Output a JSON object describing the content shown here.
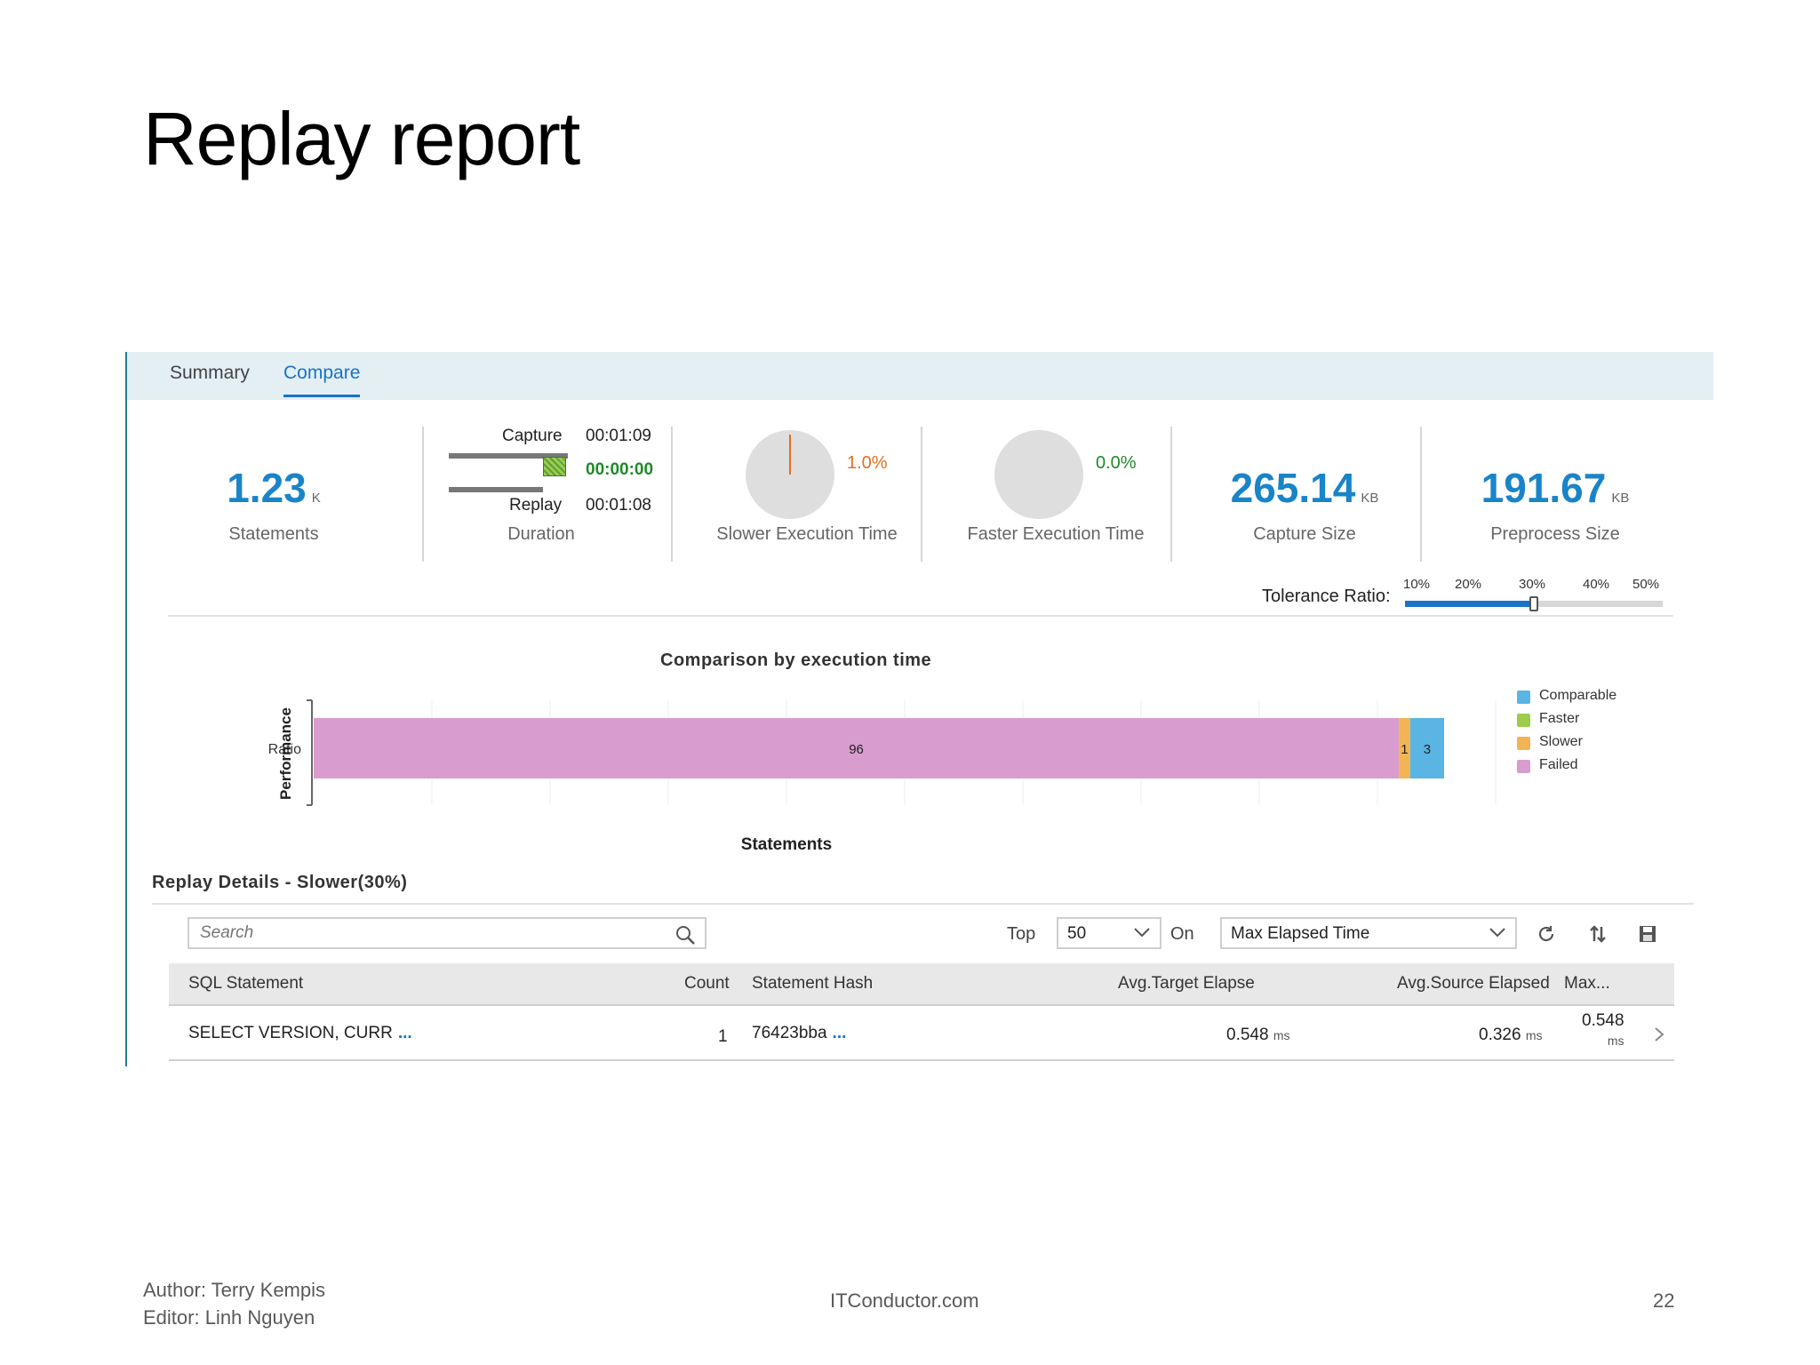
{
  "slide": {
    "title": "Replay report",
    "footer_author": "Author: Terry Kempis",
    "footer_editor": "Editor: Linh Nguyen",
    "footer_site": "ITConductor.com",
    "page_number": "22"
  },
  "tabs": [
    {
      "label": "Summary",
      "active": false
    },
    {
      "label": "Compare",
      "active": true
    }
  ],
  "kpis": {
    "statements": {
      "value": "1.23",
      "unit": "K",
      "label": "Statements"
    },
    "duration": {
      "capture_label": "Capture",
      "capture_time": "00:01:09",
      "diff_time": "00:00:00",
      "replay_label": "Replay",
      "replay_time": "00:01:08",
      "label": "Duration"
    },
    "slower": {
      "percent": "1.0%",
      "label": "Slower Execution Time"
    },
    "faster": {
      "percent": "0.0%",
      "label": "Faster Execution Time"
    },
    "capture_size": {
      "value": "265.14",
      "unit": "KB",
      "label": "Capture Size"
    },
    "preprocess_size": {
      "value": "191.67",
      "unit": "KB",
      "label": "Preprocess Size"
    }
  },
  "tolerance": {
    "label": "Tolerance Ratio:",
    "ticks": [
      "10%",
      "20%",
      "30%",
      "40%",
      "50%"
    ],
    "value_percent": 30
  },
  "chart_data": {
    "type": "bar",
    "orientation": "horizontal",
    "stacked": true,
    "title": "Comparison by execution time",
    "xlabel": "Statements",
    "ylabel": "Performance",
    "categories": [
      "Ratio"
    ],
    "series": [
      {
        "name": "Failed",
        "values": [
          96
        ],
        "color": "#d89ccf"
      },
      {
        "name": "Slower",
        "values": [
          1
        ],
        "color": "#f2b454"
      },
      {
        "name": "Faster",
        "values": [
          0
        ],
        "color": "#9ccc4c"
      },
      {
        "name": "Comparable",
        "values": [
          3
        ],
        "color": "#5ab4e4"
      }
    ],
    "xlim": [
      0,
      100
    ],
    "grid": true,
    "legend": [
      {
        "name": "Comparable",
        "color": "#5ab4e4"
      },
      {
        "name": "Faster",
        "color": "#9ccc4c"
      },
      {
        "name": "Slower",
        "color": "#f2b454"
      },
      {
        "name": "Failed",
        "color": "#d89ccf"
      }
    ],
    "legend_position": "right"
  },
  "details": {
    "title": "Replay Details - Slower(30%)",
    "search_placeholder": "Search",
    "top_label": "Top",
    "top_value": "50",
    "on_label": "On",
    "on_value": "Max Elapsed Time",
    "columns": [
      "SQL Statement",
      "Count",
      "Statement Hash",
      "Avg.Target Elapse",
      "Avg.Source Elapsed",
      "Max..."
    ],
    "rows": [
      {
        "sql": "SELECT VERSION, CURR",
        "more": "...",
        "count": "1",
        "hash": "76423bba",
        "hash_more": "...",
        "avg_target": "0.548",
        "avg_target_unit": "ms",
        "avg_source": "0.326",
        "avg_source_unit": "ms",
        "max": "0.548",
        "max_unit": "ms"
      }
    ]
  }
}
